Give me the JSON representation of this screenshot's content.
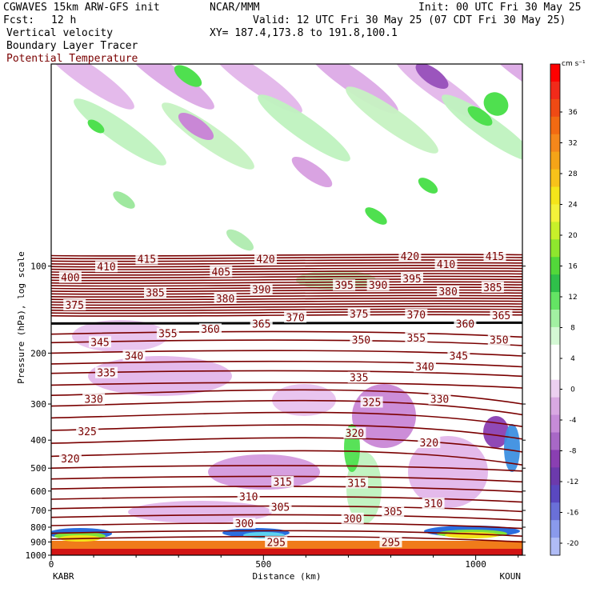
{
  "header": {
    "model": "CGWAVES 15km ARW-GFS init",
    "org": "NCAR/MMM",
    "init": "Init: 00 UTC Fri 30 May 25",
    "fcst_label": "Fcst:",
    "fcst_value": "12 h",
    "valid": "Valid: 12 UTC Fri 30 May 25 (07 CDT Fri 30 May 25)",
    "xy": "XY= 187.4,173.8 to 191.8,100.1",
    "field1": "Vertical velocity",
    "field2": "Boundary Layer Tracer",
    "field3": "Potential Temperature"
  },
  "colors": {
    "theta_line": "#7a0000",
    "tropopause_line": "#000000",
    "field3_text": "#7a0000"
  },
  "chart_data": {
    "type": "heatmap",
    "xlabel": "Distance (km)",
    "ylabel": "Pressure (hPa), log scale",
    "x_ticks": [
      "0",
      "500",
      "1000"
    ],
    "x_range": [
      0,
      1110
    ],
    "left_endpoint": "KABR",
    "right_endpoint": "KOUN",
    "y_scale": "log",
    "y_range": [
      1000,
      20
    ],
    "y_ticks": [
      "100",
      "200",
      "300",
      "400",
      "500",
      "600",
      "700",
      "800",
      "900",
      "1000"
    ],
    "colorbar": {
      "unit": "cm s⁻¹",
      "labels": [
        "36",
        "32",
        "28",
        "24",
        "20",
        "16",
        "12",
        "8",
        "4",
        "0",
        "-4",
        "-8",
        "-12",
        "-16",
        "-20"
      ]
    },
    "theta_labels": [
      {
        "text": "415",
        "x": 225,
        "p": 95
      },
      {
        "text": "420",
        "x": 505,
        "p": 95
      },
      {
        "text": "420",
        "x": 845,
        "p": 93
      },
      {
        "text": "415",
        "x": 1045,
        "p": 93
      },
      {
        "text": "410",
        "x": 130,
        "p": 101
      },
      {
        "text": "405",
        "x": 400,
        "p": 105
      },
      {
        "text": "410",
        "x": 930,
        "p": 99
      },
      {
        "text": "400",
        "x": 45,
        "p": 110
      },
      {
        "text": "395",
        "x": 690,
        "p": 117
      },
      {
        "text": "390",
        "x": 770,
        "p": 117
      },
      {
        "text": "395",
        "x": 850,
        "p": 111
      },
      {
        "text": "390",
        "x": 495,
        "p": 121
      },
      {
        "text": "385",
        "x": 245,
        "p": 124
      },
      {
        "text": "380",
        "x": 410,
        "p": 130
      },
      {
        "text": "380",
        "x": 935,
        "p": 123
      },
      {
        "text": "385",
        "x": 1040,
        "p": 119
      },
      {
        "text": "375",
        "x": 55,
        "p": 137
      },
      {
        "text": "375",
        "x": 725,
        "p": 147
      },
      {
        "text": "370",
        "x": 575,
        "p": 151
      },
      {
        "text": "370",
        "x": 860,
        "p": 148
      },
      {
        "text": "365",
        "x": 495,
        "p": 159
      },
      {
        "text": "360",
        "x": 375,
        "p": 166
      },
      {
        "text": "360",
        "x": 975,
        "p": 159
      },
      {
        "text": "365",
        "x": 1060,
        "p": 149
      },
      {
        "text": "355",
        "x": 275,
        "p": 172
      },
      {
        "text": "345",
        "x": 115,
        "p": 184
      },
      {
        "text": "350",
        "x": 730,
        "p": 181
      },
      {
        "text": "355",
        "x": 860,
        "p": 178
      },
      {
        "text": "350",
        "x": 1055,
        "p": 181
      },
      {
        "text": "340",
        "x": 195,
        "p": 205
      },
      {
        "text": "345",
        "x": 960,
        "p": 205
      },
      {
        "text": "340",
        "x": 880,
        "p": 224
      },
      {
        "text": "335",
        "x": 130,
        "p": 235
      },
      {
        "text": "335",
        "x": 725,
        "p": 244
      },
      {
        "text": "330",
        "x": 100,
        "p": 290
      },
      {
        "text": "325",
        "x": 755,
        "p": 297
      },
      {
        "text": "330",
        "x": 915,
        "p": 290
      },
      {
        "text": "325",
        "x": 85,
        "p": 375
      },
      {
        "text": "320",
        "x": 715,
        "p": 380
      },
      {
        "text": "320",
        "x": 890,
        "p": 410
      },
      {
        "text": "320",
        "x": 45,
        "p": 465
      },
      {
        "text": "315",
        "x": 545,
        "p": 560
      },
      {
        "text": "315",
        "x": 720,
        "p": 565
      },
      {
        "text": "310",
        "x": 465,
        "p": 630
      },
      {
        "text": "305",
        "x": 540,
        "p": 685
      },
      {
        "text": "310",
        "x": 900,
        "p": 665
      },
      {
        "text": "305",
        "x": 805,
        "p": 710
      },
      {
        "text": "300",
        "x": 455,
        "p": 780
      },
      {
        "text": "300",
        "x": 710,
        "p": 750
      },
      {
        "text": "295",
        "x": 530,
        "p": 905
      },
      {
        "text": "295",
        "x": 800,
        "p": 905
      }
    ]
  }
}
